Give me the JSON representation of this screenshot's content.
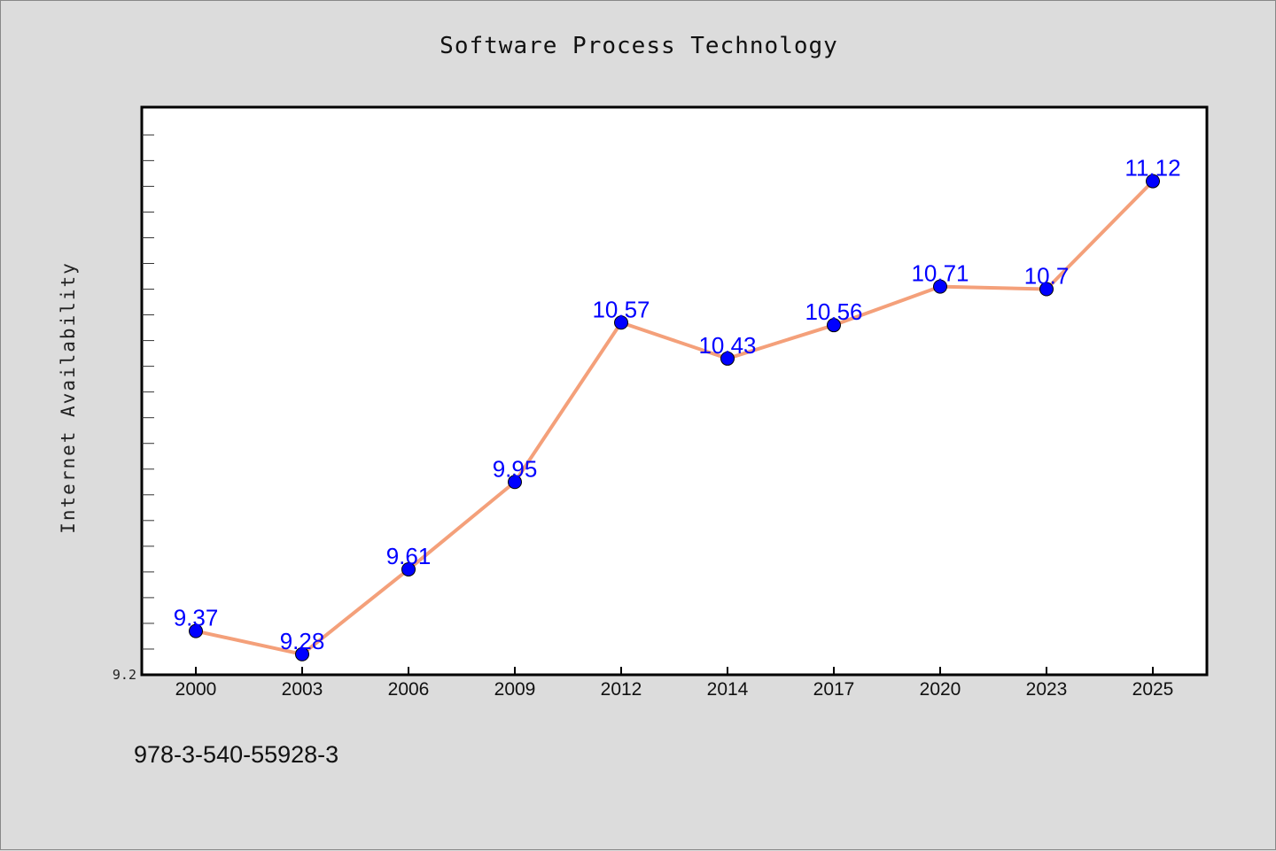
{
  "chart_data": {
    "type": "line",
    "title": "Software Process Technology",
    "xlabel": "",
    "ylabel": "Internet Availability",
    "categories": [
      "2000",
      "2003",
      "2006",
      "2009",
      "2012",
      "2014",
      "2017",
      "2020",
      "2023",
      "2025"
    ],
    "series": [
      {
        "values": [
          9.37,
          9.28,
          9.61,
          9.95,
          10.57,
          10.43,
          10.56,
          10.71,
          10.7,
          11.12
        ],
        "data_labels": [
          "9.37",
          "9.28",
          "9.61",
          "9.95",
          "10.57",
          "10.43",
          "10.56",
          "10.71",
          "10.7",
          "11.12"
        ],
        "line_color": "#f4a07a",
        "marker_color": "#0000ff"
      }
    ],
    "ylim": [
      9.2,
      11.4
    ],
    "y_tick_labels": [
      "9.2"
    ],
    "grid": false,
    "background": "#dcdcdc",
    "plot_background": "#ffffff"
  },
  "annotation": "978-3-540-55928-3"
}
